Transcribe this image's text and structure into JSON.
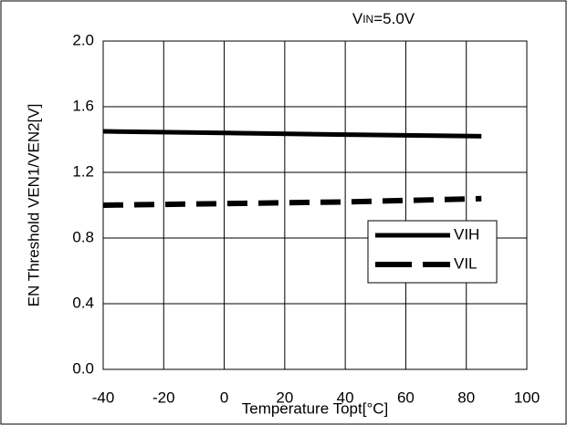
{
  "chart_data": {
    "type": "line",
    "annotation": {
      "main": "V",
      "sub": "IN",
      "rest": "=5.0V"
    },
    "xlabel": "Temperature Topt[°C]",
    "ylabel": "EN Threshold VEN1/VEN2[V]",
    "x": [
      -40,
      0,
      40,
      85
    ],
    "series": [
      {
        "name": "VIH",
        "color": "#000000",
        "style": "solid",
        "values": [
          1.45,
          1.44,
          1.43,
          1.42
        ]
      },
      {
        "name": "VIL",
        "color": "#000000",
        "style": "dashed",
        "values": [
          1.0,
          1.01,
          1.02,
          1.04
        ]
      }
    ],
    "xlim": [
      -40,
      100
    ],
    "xticks": [
      -40,
      -20,
      0,
      20,
      40,
      60,
      80,
      100
    ],
    "ylim": [
      0,
      2
    ],
    "yticks": [
      {
        "value": 0,
        "label": "0.0"
      },
      0.4,
      0.8,
      1.2,
      1.6,
      {
        "value": 2,
        "label": "2.0"
      }
    ],
    "grid": true,
    "legend": "right"
  }
}
